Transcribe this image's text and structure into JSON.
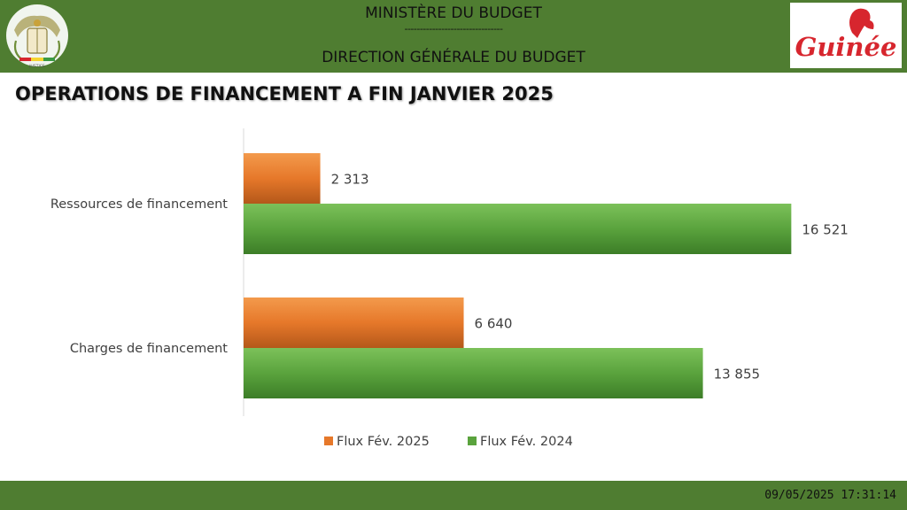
{
  "header": {
    "ministry": "MINISTÈRE DU BUDGET",
    "separator": "--------------------------------",
    "direction": "DIRECTION GÉNÉRALE DU BUDGET",
    "emblem_text": "JUSTICE",
    "brand_text": "Guinée"
  },
  "page_title": "OPERATIONS DE FINANCEMENT A FIN JANVIER 2025",
  "chart_data": {
    "type": "bar",
    "orientation": "horizontal",
    "categories": [
      "Ressources de financement",
      "Charges de financement"
    ],
    "series": [
      {
        "name": "Flux Fév. 2025",
        "values": [
          2313,
          6640
        ],
        "labels": [
          "2 313",
          "6 640"
        ],
        "color": "#e6782a"
      },
      {
        "name": "Flux Fév. 2024",
        "values": [
          16521,
          13855
        ],
        "labels": [
          "16 521",
          "13 855"
        ],
        "color": "#5aa33d"
      }
    ],
    "xlim": [
      0,
      17500
    ],
    "grid": false,
    "legend": "bottom"
  },
  "footer": {
    "timestamp": "09/05/2025 17:31:14"
  },
  "colors": {
    "band": "#4f7d31",
    "orange": "#e6782a",
    "green": "#5aa33d",
    "brand_red": "#d7262e"
  }
}
